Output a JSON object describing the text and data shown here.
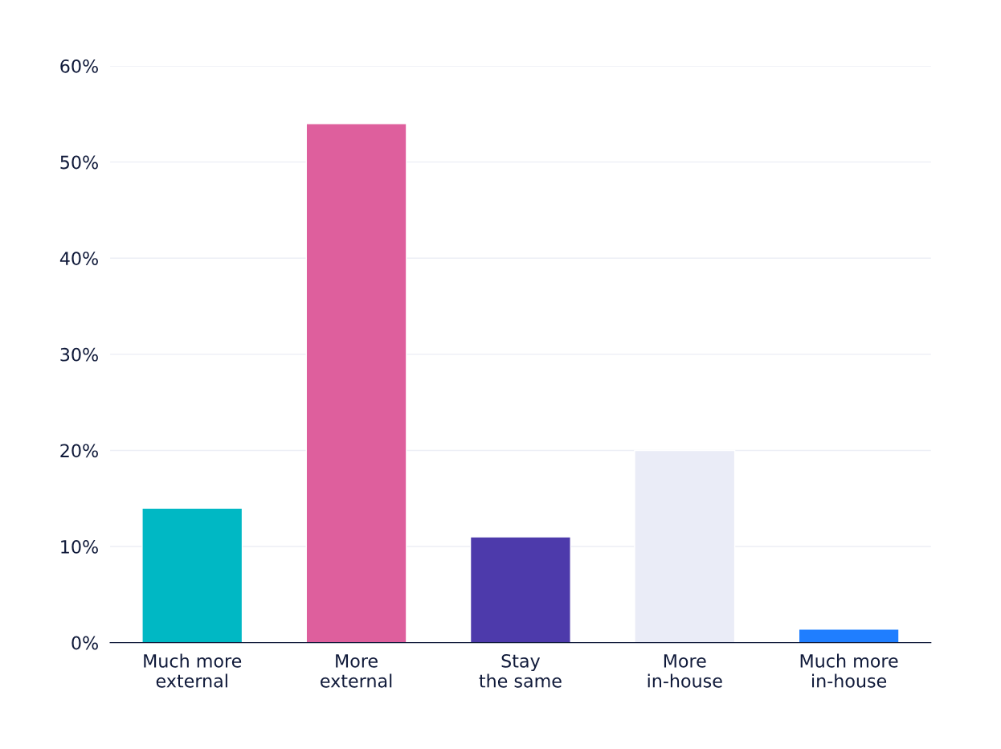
{
  "chart_data": {
    "type": "bar",
    "categories": [
      "Much more\nexternal",
      "More\nexternal",
      "Stay\nthe same",
      "More\nin-house",
      "Much more\nin-house"
    ],
    "values": [
      14,
      54,
      11,
      20,
      1.4
    ],
    "colors": [
      "#00b8c4",
      "#de5f9d",
      "#4d3aab",
      "#eaecf7",
      "#1f7eff"
    ],
    "ylim": [
      0,
      60
    ],
    "yticks": [
      {
        "value": 0,
        "label": "0%"
      },
      {
        "value": 10,
        "label": "10%"
      },
      {
        "value": 20,
        "label": "20%"
      },
      {
        "value": 30,
        "label": "30%"
      },
      {
        "value": 40,
        "label": "40%"
      },
      {
        "value": 50,
        "label": "50%"
      },
      {
        "value": 60,
        "label": "60%"
      }
    ],
    "grid": "y"
  }
}
